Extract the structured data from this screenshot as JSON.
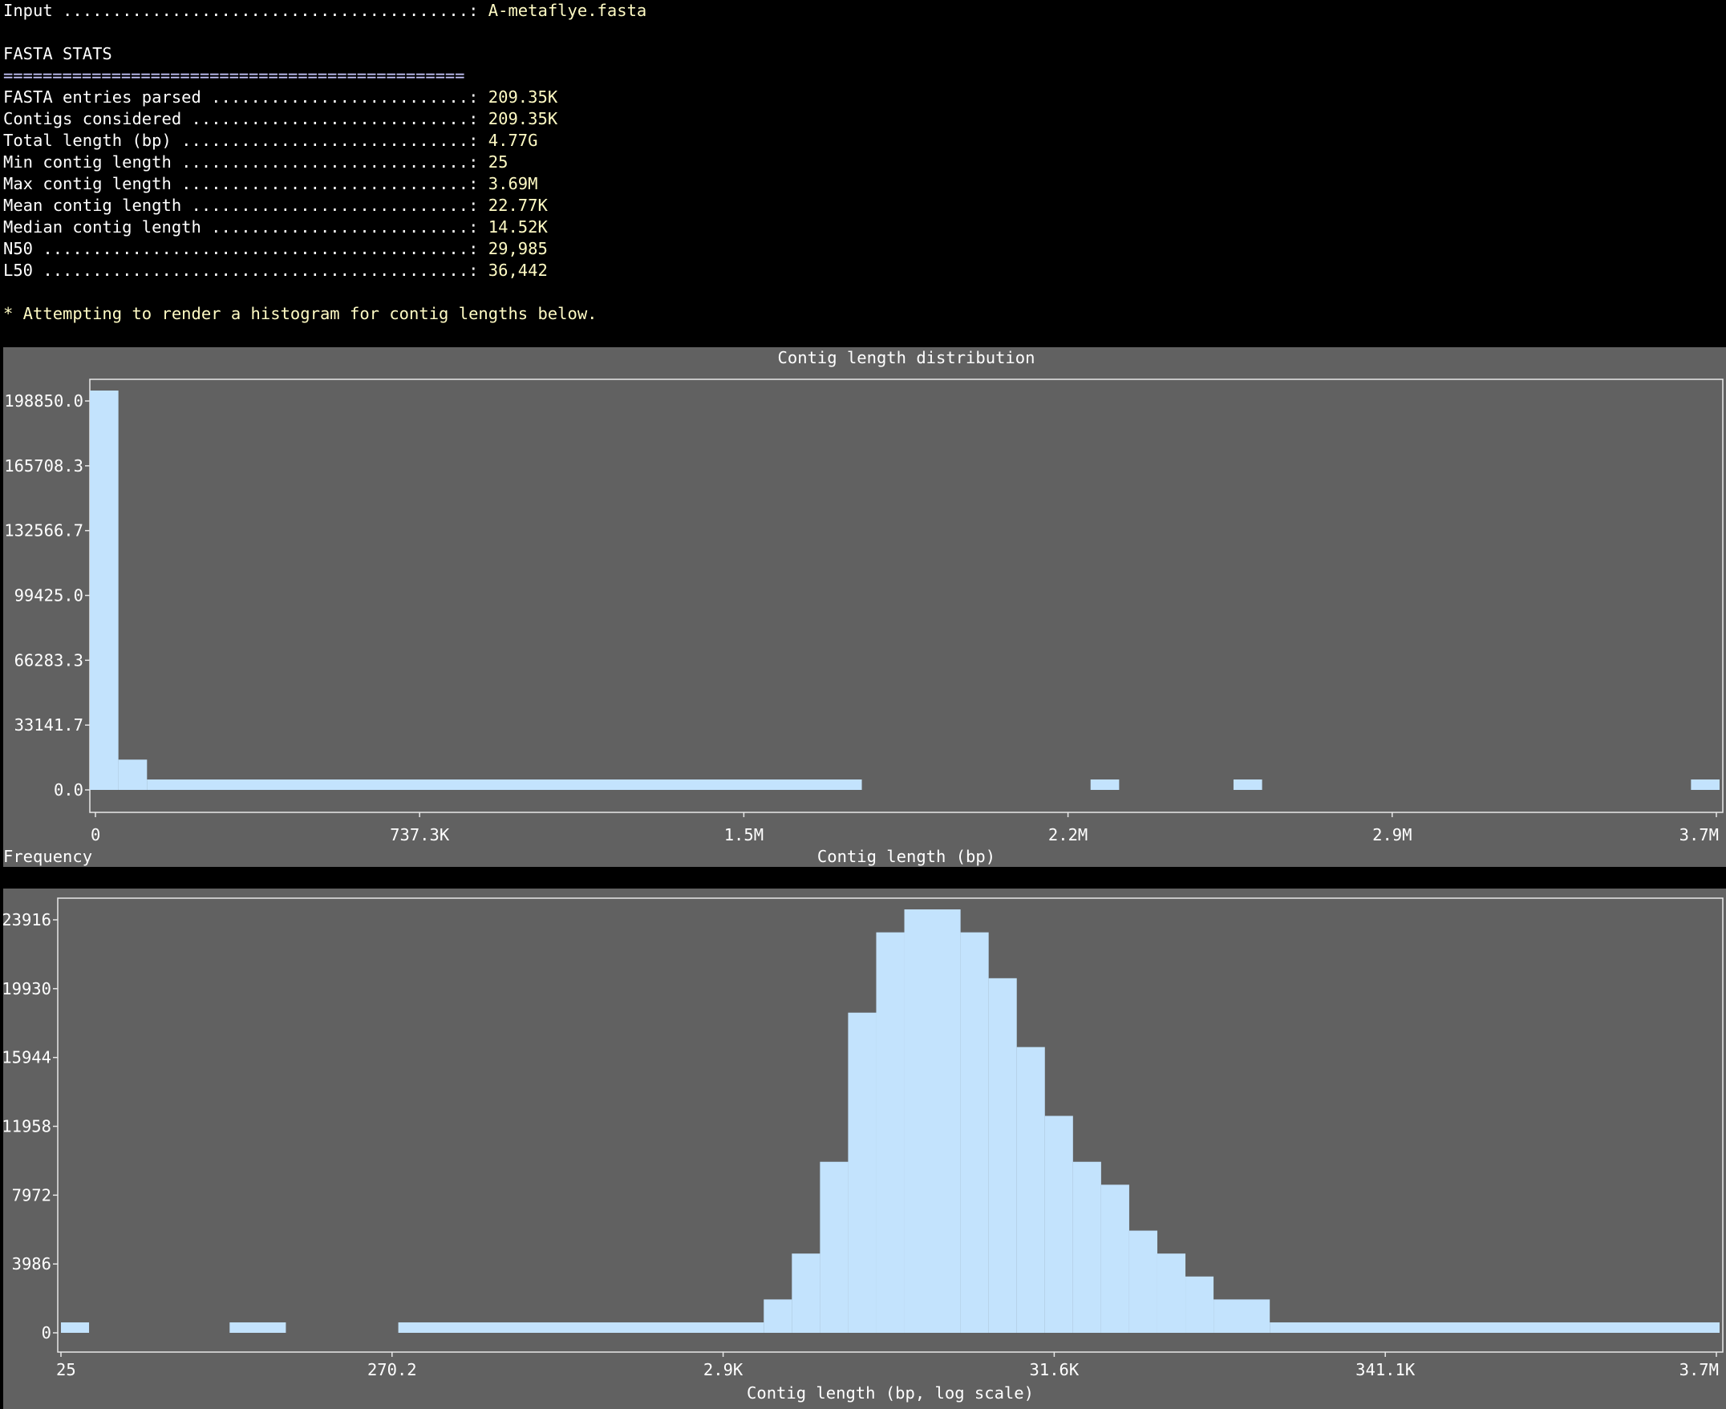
{
  "input_line": {
    "label": "Input",
    "value": "A-metaflye.fasta"
  },
  "section_title": "FASTA STATS",
  "separator": "===============================================",
  "stats": [
    {
      "label": "FASTA entries parsed",
      "value": "209.35K"
    },
    {
      "label": "Contigs considered",
      "value": "209.35K"
    },
    {
      "label": "Total length (bp)",
      "value": "4.77G"
    },
    {
      "label": "Min contig length",
      "value": "25"
    },
    {
      "label": "Max contig length",
      "value": "3.69M"
    },
    {
      "label": "Mean contig length",
      "value": "22.77K"
    },
    {
      "label": "Median contig length",
      "value": "14.52K"
    },
    {
      "label": "N50",
      "value": "29,985"
    },
    {
      "label": "L50",
      "value": "36,442"
    }
  ],
  "note": "* Attempting to render a histogram for contig lengths below.",
  "colors": {
    "bar": "#c3e3fd",
    "panel": "#616161",
    "value_text": "#fffbc4"
  },
  "chart_data": [
    {
      "type": "bar",
      "title": "Contig length distribution",
      "xlabel": "Contig length (bp)",
      "ylabel": "Frequency",
      "x_ticks": [
        "0",
        "737.3K",
        "1.5M",
        "2.2M",
        "2.9M",
        "3.7M"
      ],
      "y_ticks": [
        "0.0",
        "33141.7",
        "66283.3",
        "99425.0",
        "132566.7",
        "165708.3",
        "198850.0"
      ],
      "xlim": [
        0,
        3690000
      ],
      "ylim": [
        0,
        198850
      ],
      "bin_count": 57,
      "bins": [
        {
          "start": 0,
          "end": 1,
          "value": 198850
        },
        {
          "start": 1,
          "end": 2,
          "value": 10150
        },
        {
          "start": 2,
          "end": 27,
          "value": 1
        },
        {
          "start": 35,
          "end": 36,
          "value": 1
        },
        {
          "start": 40,
          "end": 41,
          "value": 1
        },
        {
          "start": 56,
          "end": 57,
          "value": 1
        }
      ],
      "grid": false,
      "legend": "none"
    },
    {
      "type": "bar",
      "title": "",
      "xlabel": "Contig length (bp, log scale)",
      "ylabel": "",
      "x_ticks": [
        "25",
        "270.2",
        "2.9K",
        "31.6K",
        "341.1K",
        "3.7M"
      ],
      "y_ticks": [
        "0",
        "3986",
        "7972",
        "11958",
        "15944",
        "19930",
        "23916"
      ],
      "x_scale": "log",
      "ylim": [
        0,
        23916
      ],
      "bin_count": 59,
      "bins": [
        {
          "start": 0,
          "end": 1,
          "value": 1
        },
        {
          "start": 6,
          "end": 8,
          "value": 1
        },
        {
          "start": 12,
          "end": 25,
          "value": 1
        },
        {
          "start": 25,
          "end": 26,
          "value": 1329
        },
        {
          "start": 26,
          "end": 27,
          "value": 3986
        },
        {
          "start": 27,
          "end": 28,
          "value": 9301
        },
        {
          "start": 28,
          "end": 29,
          "value": 17937
        },
        {
          "start": 29,
          "end": 30,
          "value": 22587
        },
        {
          "start": 30,
          "end": 32,
          "value": 23916
        },
        {
          "start": 32,
          "end": 33,
          "value": 22587
        },
        {
          "start": 33,
          "end": 34,
          "value": 19930
        },
        {
          "start": 34,
          "end": 35,
          "value": 15944
        },
        {
          "start": 35,
          "end": 36,
          "value": 11958
        },
        {
          "start": 36,
          "end": 37,
          "value": 9301
        },
        {
          "start": 37,
          "end": 38,
          "value": 7972
        },
        {
          "start": 38,
          "end": 39,
          "value": 5315
        },
        {
          "start": 39,
          "end": 40,
          "value": 3986
        },
        {
          "start": 40,
          "end": 41,
          "value": 2657
        },
        {
          "start": 41,
          "end": 43,
          "value": 1329
        },
        {
          "start": 43,
          "end": 59,
          "value": 1
        }
      ],
      "grid": false,
      "legend": "none"
    }
  ]
}
